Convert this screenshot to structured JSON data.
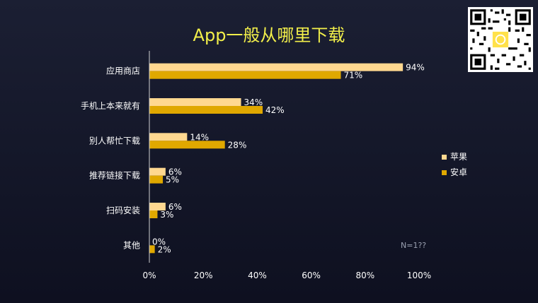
{
  "chart_data": {
    "type": "bar",
    "orientation": "horizontal",
    "title": "App一般从哪里下载",
    "categories": [
      "应用商店",
      "手机上本来就有",
      "别人帮忙下载",
      "推荐链接下载",
      "扫码安装",
      "其他"
    ],
    "series": [
      {
        "name": "苹果",
        "values": [
          94,
          34,
          14,
          6,
          6,
          0
        ],
        "color": "#ffd890"
      },
      {
        "name": "安卓",
        "values": [
          71,
          42,
          28,
          5,
          3,
          2
        ],
        "color": "#e0a800"
      }
    ],
    "x_ticks": [
      "0%",
      "20%",
      "40%",
      "60%",
      "80%",
      "100%"
    ],
    "xlim": [
      0,
      100
    ],
    "value_suffix": "%",
    "legend_position": "right",
    "grid": false
  },
  "note": "N=1??"
}
